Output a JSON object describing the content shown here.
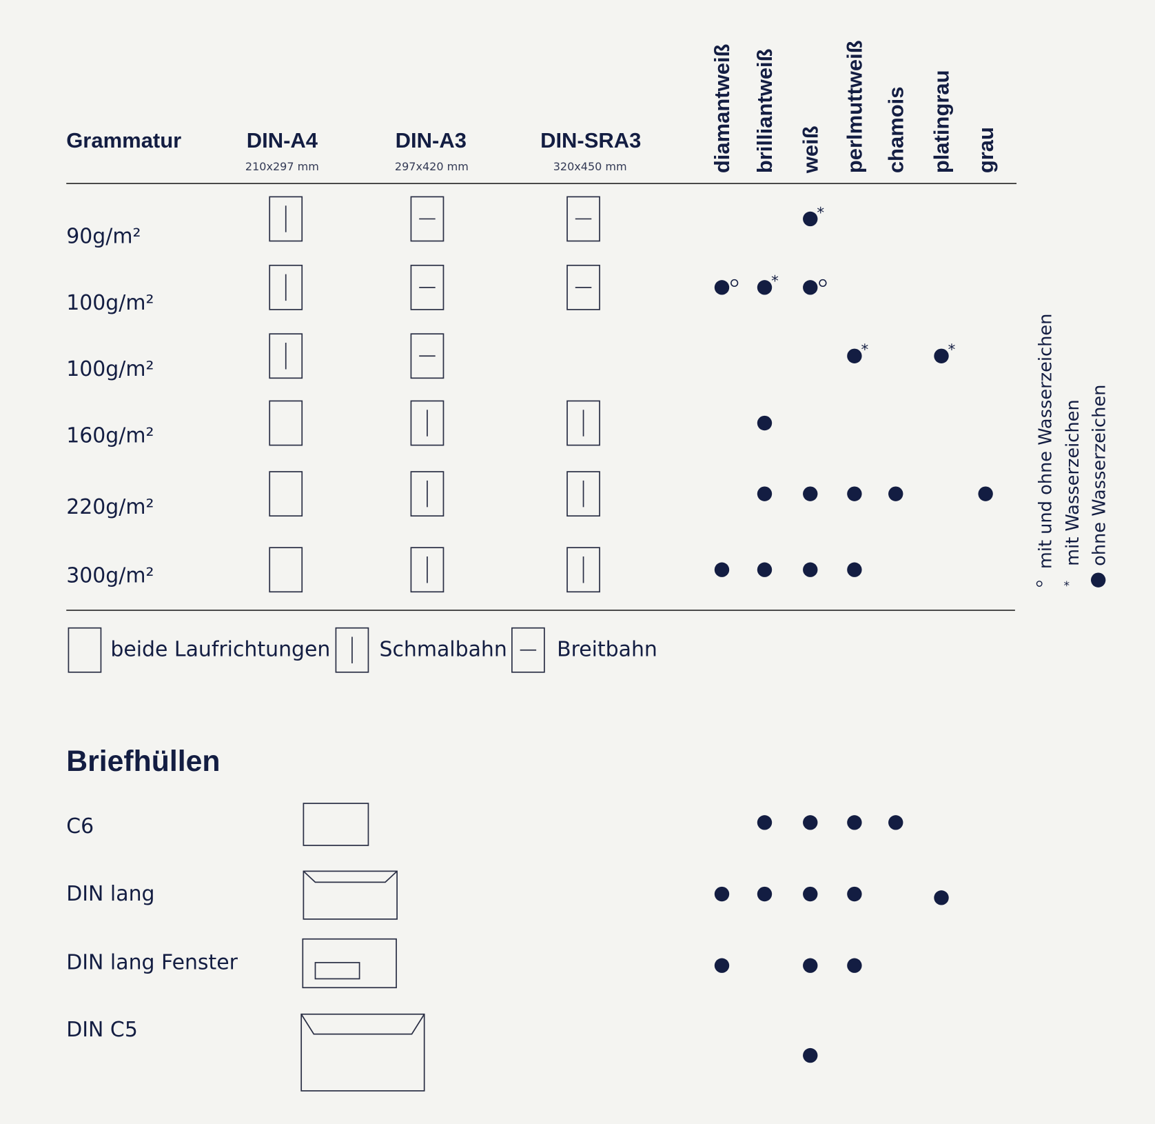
{
  "header": {
    "grammatur": "Grammatur",
    "formats": [
      {
        "name": "DIN-A4",
        "size": "210x297 mm"
      },
      {
        "name": "DIN-A3",
        "size": "297x420 mm"
      },
      {
        "name": "DIN-SRA3",
        "size": "320x450 mm"
      }
    ],
    "colors": [
      "diamantweiß",
      "brilliantweiß",
      "weiß",
      "perlmuttweiß",
      "chamois",
      "platingrau",
      "grau"
    ]
  },
  "rows": [
    {
      "label": "90g/m²",
      "formats": [
        "schmal",
        "breit",
        "breit"
      ],
      "marks": [
        null,
        null,
        "star",
        null,
        null,
        null,
        null
      ]
    },
    {
      "label": "100g/m²",
      "formats": [
        "schmal",
        "breit",
        "breit"
      ],
      "marks": [
        "ring",
        "star",
        "ring",
        null,
        null,
        null,
        null
      ]
    },
    {
      "label": "100g/m²",
      "formats": [
        "schmal",
        "breit",
        null
      ],
      "marks": [
        null,
        null,
        null,
        "star",
        null,
        "star",
        null
      ]
    },
    {
      "label": "160g/m²",
      "formats": [
        "beide",
        "schmal",
        "schmal"
      ],
      "marks": [
        null,
        "dot",
        null,
        null,
        null,
        null,
        null
      ]
    },
    {
      "label": "220g/m²",
      "formats": [
        "beide",
        "schmal",
        "schmal"
      ],
      "marks": [
        null,
        "dot",
        "dot",
        "dot",
        "dot",
        null,
        "dot"
      ]
    },
    {
      "label": "300g/m²",
      "formats": [
        "beide",
        "schmal",
        "schmal"
      ],
      "marks": [
        "dot",
        "dot",
        "dot",
        "dot",
        null,
        null,
        null
      ]
    }
  ],
  "direction_legend": {
    "beide": "beide Laufrichtungen",
    "schmal": "Schmalbahn",
    "breit": "Breitbahn"
  },
  "mark_legend": {
    "ring": "mit und ohne Wasserzeichen",
    "star": "mit Wasserzeichen",
    "dot": "ohne Wasserzeichen"
  },
  "envelopes": {
    "title": "Briefhüllen",
    "items": [
      {
        "label": "C6",
        "shape": "c6",
        "marks": [
          null,
          "dot",
          "dot",
          "dot",
          "dot",
          null,
          null
        ]
      },
      {
        "label": "DIN lang",
        "shape": "lang",
        "marks": [
          "dot",
          "dot",
          "dot",
          "dot",
          null,
          "dot",
          null
        ]
      },
      {
        "label": "DIN lang Fenster",
        "shape": "fenster",
        "marks": [
          "dot",
          null,
          "dot",
          "dot",
          null,
          null,
          null
        ]
      },
      {
        "label": "DIN C5",
        "shape": "c5",
        "marks": [
          null,
          null,
          "dot",
          null,
          null,
          null,
          null
        ]
      }
    ]
  },
  "colors": {
    "ink": "#131d42",
    "background": "#f4f4f1"
  }
}
